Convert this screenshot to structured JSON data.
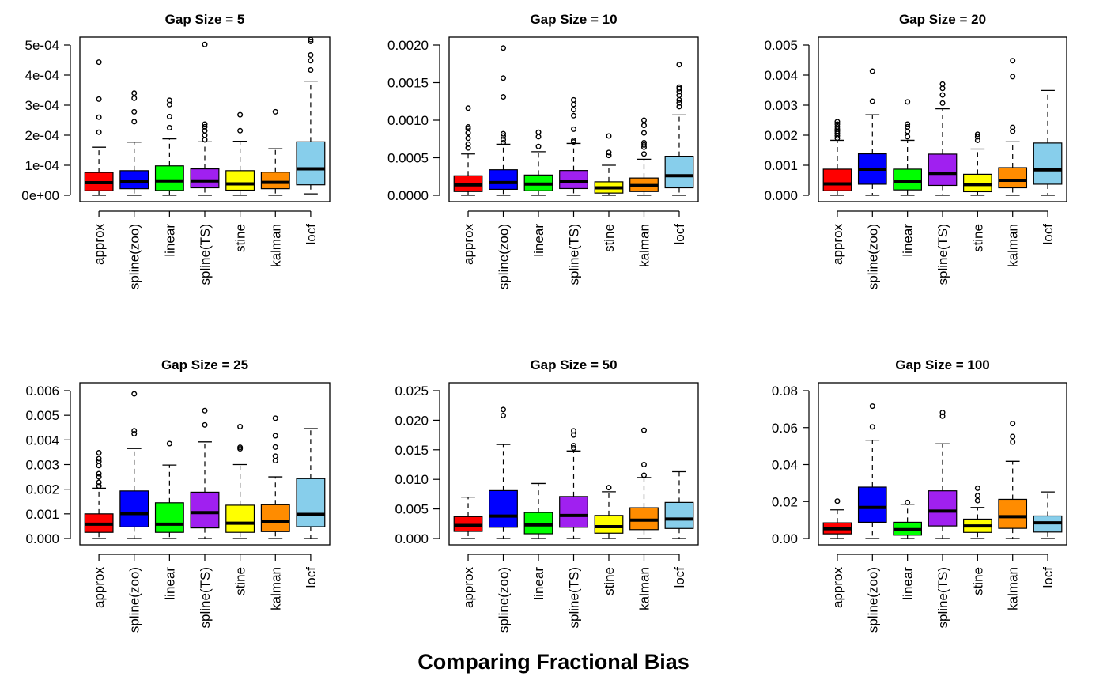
{
  "figure": {
    "title": "Comparing Fractional Bias"
  },
  "categories": [
    "approx",
    "spline(zoo)",
    "linear",
    "spline(TS)",
    "stine",
    "kalman",
    "locf"
  ],
  "colors": [
    "#ff0000",
    "#0000ff",
    "#00ff00",
    "#a020f0",
    "#ffff00",
    "#ff8c00",
    "#87ceeb"
  ],
  "chart_data": [
    {
      "type": "box",
      "title": "Gap Size = 5",
      "ylim": [
        0,
        0.0005
      ],
      "yticks": [
        0,
        0.0001,
        0.0002,
        0.0003,
        0.0004,
        0.0005
      ],
      "ytick_labels": [
        "0e+00",
        "1e-04",
        "2e-04",
        "3e-04",
        "4e-04",
        "5e-04"
      ],
      "series": [
        {
          "category": "approx",
          "min": 0,
          "q1": 1.5e-05,
          "median": 4.2e-05,
          "q3": 7.6e-05,
          "max": 0.00016,
          "outliers": [
            0.00021,
            0.00026,
            0.00032,
            0.000443
          ]
        },
        {
          "category": "spline(zoo)",
          "min": 0,
          "q1": 2.2e-05,
          "median": 4.5e-05,
          "q3": 8.2e-05,
          "max": 0.000177,
          "outliers": [
            0.000245,
            0.000278,
            0.000323,
            0.00034
          ]
        },
        {
          "category": "linear",
          "min": 0,
          "q1": 1.6e-05,
          "median": 4.8e-05,
          "q3": 9.8e-05,
          "max": 0.000188,
          "outliers": [
            0.000225,
            0.000262,
            0.000302,
            0.000316
          ]
        },
        {
          "category": "spline(TS)",
          "min": 0,
          "q1": 2.5e-05,
          "median": 4.8e-05,
          "q3": 8.8e-05,
          "max": 0.000178,
          "outliers": [
            0.000185,
            0.0002,
            0.000215,
            0.000228,
            0.000237,
            0.000502
          ]
        },
        {
          "category": "stine",
          "min": 0,
          "q1": 1.7e-05,
          "median": 3.8e-05,
          "q3": 8.2e-05,
          "max": 0.00018,
          "outliers": [
            0.000215,
            0.000268
          ]
        },
        {
          "category": "kalman",
          "min": 0,
          "q1": 2.2e-05,
          "median": 4.3e-05,
          "q3": 7.7e-05,
          "max": 0.000155,
          "outliers": [
            0.000278
          ]
        },
        {
          "category": "locf",
          "min": 5e-06,
          "q1": 3.5e-05,
          "median": 8.8e-05,
          "q3": 0.000178,
          "max": 0.00038,
          "outliers": [
            0.000417,
            0.000448,
            0.000467,
            0.000512,
            0.000518
          ]
        }
      ]
    },
    {
      "type": "box",
      "title": "Gap Size = 10",
      "ylim": [
        0,
        0.002
      ],
      "yticks": [
        0,
        0.0005,
        0.001,
        0.0015,
        0.002
      ],
      "ytick_labels": [
        "0.0000",
        "0.0005",
        "0.0010",
        "0.0015",
        "0.0020"
      ],
      "series": [
        {
          "category": "approx",
          "min": 0,
          "q1": 5e-05,
          "median": 0.00014,
          "q3": 0.00026,
          "max": 0.00055,
          "outliers": [
            0.00063,
            0.00068,
            0.00076,
            0.00083,
            0.00089,
            0.00091,
            0.00116
          ]
        },
        {
          "category": "spline(zoo)",
          "min": 0,
          "q1": 8e-05,
          "median": 0.00017,
          "q3": 0.00034,
          "max": 0.00068,
          "outliers": [
            0.0007,
            0.00074,
            0.00079,
            0.00082,
            0.00131,
            0.00156,
            0.00196
          ]
        },
        {
          "category": "linear",
          "min": 0,
          "q1": 6e-05,
          "median": 0.00015,
          "q3": 0.00027,
          "max": 0.00058,
          "outliers": [
            0.00065,
            0.00078,
            0.00084
          ]
        },
        {
          "category": "spline(TS)",
          "min": 0,
          "q1": 9e-05,
          "median": 0.00018,
          "q3": 0.00033,
          "max": 0.00069,
          "outliers": [
            0.00071,
            0.00073,
            0.00088,
            0.00106,
            0.00114,
            0.00121,
            0.00127
          ]
        },
        {
          "category": "stine",
          "min": 0,
          "q1": 3e-05,
          "median": 0.0001,
          "q3": 0.00018,
          "max": 0.0004,
          "outliers": [
            0.00053,
            0.00057,
            0.00079
          ]
        },
        {
          "category": "kalman",
          "min": 0,
          "q1": 5e-05,
          "median": 0.00013,
          "q3": 0.00023,
          "max": 0.00048,
          "outliers": [
            0.00055,
            0.00064,
            0.00067,
            0.0007,
            0.00083,
            0.00093,
            0.001
          ]
        },
        {
          "category": "locf",
          "min": 0,
          "q1": 0.0001,
          "median": 0.00026,
          "q3": 0.00052,
          "max": 0.00107,
          "outliers": [
            0.00118,
            0.00123,
            0.00127,
            0.00133,
            0.00138,
            0.00142,
            0.00144,
            0.00174
          ]
        }
      ]
    },
    {
      "type": "box",
      "title": "Gap Size = 20",
      "ylim": [
        0,
        0.005
      ],
      "yticks": [
        0,
        0.001,
        0.002,
        0.003,
        0.004,
        0.005
      ],
      "ytick_labels": [
        "0.000",
        "0.001",
        "0.002",
        "0.003",
        "0.004",
        "0.005"
      ],
      "series": [
        {
          "category": "approx",
          "min": 0,
          "q1": 0.00015,
          "median": 0.00038,
          "q3": 0.00087,
          "max": 0.00183,
          "outliers": [
            0.0019,
            0.00198,
            0.00206,
            0.00213,
            0.0022,
            0.00228,
            0.00237,
            0.00245
          ]
        },
        {
          "category": "spline(zoo)",
          "min": 0,
          "q1": 0.00037,
          "median": 0.00087,
          "q3": 0.00138,
          "max": 0.00268,
          "outliers": [
            0.00313,
            0.00413
          ]
        },
        {
          "category": "linear",
          "min": 0,
          "q1": 0.00018,
          "median": 0.00045,
          "q3": 0.00087,
          "max": 0.00183,
          "outliers": [
            0.00195,
            0.00213,
            0.00228,
            0.00237,
            0.00311
          ]
        },
        {
          "category": "spline(TS)",
          "min": 0,
          "q1": 0.00033,
          "median": 0.00073,
          "q3": 0.00137,
          "max": 0.00288,
          "outliers": [
            0.00307,
            0.00334,
            0.00356,
            0.0037
          ]
        },
        {
          "category": "stine",
          "min": 0,
          "q1": 0.00012,
          "median": 0.00036,
          "q3": 0.0007,
          "max": 0.00154,
          "outliers": [
            0.00183,
            0.00195,
            0.00203
          ]
        },
        {
          "category": "kalman",
          "min": 0,
          "q1": 0.00025,
          "median": 0.0005,
          "q3": 0.00092,
          "max": 0.00178,
          "outliers": [
            0.00213,
            0.00226,
            0.00395,
            0.00448
          ]
        },
        {
          "category": "locf",
          "min": 0,
          "q1": 0.00037,
          "median": 0.00085,
          "q3": 0.00174,
          "max": 0.00349,
          "outliers": []
        }
      ]
    },
    {
      "type": "box",
      "title": "Gap Size = 25",
      "ylim": [
        0,
        0.006
      ],
      "yticks": [
        0,
        0.001,
        0.002,
        0.003,
        0.004,
        0.005,
        0.006
      ],
      "ytick_labels": [
        "0.000",
        "0.001",
        "0.002",
        "0.003",
        "0.004",
        "0.005",
        "0.006"
      ],
      "series": [
        {
          "category": "approx",
          "min": 0,
          "q1": 0.00025,
          "median": 0.00058,
          "q3": 0.001,
          "max": 0.00204,
          "outliers": [
            0.00213,
            0.00228,
            0.0025,
            0.00263,
            0.00296,
            0.00313,
            0.00324,
            0.00348
          ]
        },
        {
          "category": "spline(zoo)",
          "min": 0,
          "q1": 0.00047,
          "median": 0.00101,
          "q3": 0.00193,
          "max": 0.00365,
          "outliers": [
            0.00425,
            0.00437,
            0.00587
          ]
        },
        {
          "category": "linear",
          "min": 0,
          "q1": 0.00025,
          "median": 0.00058,
          "q3": 0.00145,
          "max": 0.00298,
          "outliers": [
            0.00385
          ]
        },
        {
          "category": "spline(TS)",
          "min": 0,
          "q1": 0.00043,
          "median": 0.00105,
          "q3": 0.00188,
          "max": 0.00392,
          "outliers": [
            0.00461,
            0.00519
          ]
        },
        {
          "category": "stine",
          "min": 0,
          "q1": 0.00025,
          "median": 0.00062,
          "q3": 0.00135,
          "max": 0.003,
          "outliers": [
            0.00364,
            0.0037,
            0.00454
          ]
        },
        {
          "category": "kalman",
          "min": 0,
          "q1": 0.00028,
          "median": 0.00068,
          "q3": 0.00137,
          "max": 0.0025,
          "outliers": [
            0.00316,
            0.00334,
            0.00371,
            0.00417,
            0.00488
          ]
        },
        {
          "category": "locf",
          "min": 0,
          "q1": 0.00048,
          "median": 0.00098,
          "q3": 0.00243,
          "max": 0.00446,
          "outliers": []
        }
      ]
    },
    {
      "type": "box",
      "title": "Gap Size = 50",
      "ylim": [
        0,
        0.025
      ],
      "yticks": [
        0,
        0.005,
        0.01,
        0.015,
        0.02,
        0.025
      ],
      "ytick_labels": [
        "0.000",
        "0.005",
        "0.010",
        "0.015",
        "0.020",
        "0.025"
      ],
      "series": [
        {
          "category": "approx",
          "min": 0,
          "q1": 0.0012,
          "median": 0.0022,
          "q3": 0.0037,
          "max": 0.007,
          "outliers": []
        },
        {
          "category": "spline(zoo)",
          "min": 0,
          "q1": 0.0019,
          "median": 0.0038,
          "q3": 0.0081,
          "max": 0.0159,
          "outliers": [
            0.0208,
            0.0218
          ]
        },
        {
          "category": "linear",
          "min": 0,
          "q1": 0.0008,
          "median": 0.0023,
          "q3": 0.0044,
          "max": 0.0093,
          "outliers": []
        },
        {
          "category": "spline(TS)",
          "min": 0,
          "q1": 0.0019,
          "median": 0.0039,
          "q3": 0.0071,
          "max": 0.0148,
          "outliers": [
            0.0153,
            0.0157,
            0.0175,
            0.0182
          ]
        },
        {
          "category": "stine",
          "min": 0,
          "q1": 0.0009,
          "median": 0.002,
          "q3": 0.0039,
          "max": 0.0079,
          "outliers": [
            0.0086
          ]
        },
        {
          "category": "kalman",
          "min": 0,
          "q1": 0.0015,
          "median": 0.0031,
          "q3": 0.0052,
          "max": 0.0103,
          "outliers": [
            0.0107,
            0.0125,
            0.0183
          ]
        },
        {
          "category": "locf",
          "min": 0,
          "q1": 0.0017,
          "median": 0.0033,
          "q3": 0.0061,
          "max": 0.0113,
          "outliers": []
        }
      ]
    },
    {
      "type": "box",
      "title": "Gap Size = 100",
      "ylim": [
        0,
        0.08
      ],
      "yticks": [
        0,
        0.02,
        0.04,
        0.06,
        0.08
      ],
      "ytick_labels": [
        "0.00",
        "0.02",
        "0.04",
        "0.06",
        "0.08"
      ],
      "series": [
        {
          "category": "approx",
          "min": 0,
          "q1": 0.0025,
          "median": 0.0053,
          "q3": 0.0085,
          "max": 0.0155,
          "outliers": [
            0.0202
          ]
        },
        {
          "category": "spline(zoo)",
          "min": 0,
          "q1": 0.0088,
          "median": 0.0168,
          "q3": 0.0278,
          "max": 0.0532,
          "outliers": [
            0.0604,
            0.0716
          ]
        },
        {
          "category": "linear",
          "min": 0,
          "q1": 0.0018,
          "median": 0.0048,
          "q3": 0.0088,
          "max": 0.0185,
          "outliers": [
            0.0195
          ]
        },
        {
          "category": "spline(TS)",
          "min": 0,
          "q1": 0.0068,
          "median": 0.0148,
          "q3": 0.0258,
          "max": 0.0512,
          "outliers": [
            0.0662,
            0.0682
          ]
        },
        {
          "category": "stine",
          "min": 0,
          "q1": 0.0033,
          "median": 0.0068,
          "q3": 0.0105,
          "max": 0.0168,
          "outliers": [
            0.0205,
            0.0232,
            0.0272
          ]
        },
        {
          "category": "kalman",
          "min": 0,
          "q1": 0.0055,
          "median": 0.0118,
          "q3": 0.0212,
          "max": 0.0418,
          "outliers": [
            0.0522,
            0.0552,
            0.0622
          ]
        },
        {
          "category": "locf",
          "min": 0,
          "q1": 0.0035,
          "median": 0.0085,
          "q3": 0.0122,
          "max": 0.0252,
          "outliers": []
        }
      ]
    }
  ]
}
